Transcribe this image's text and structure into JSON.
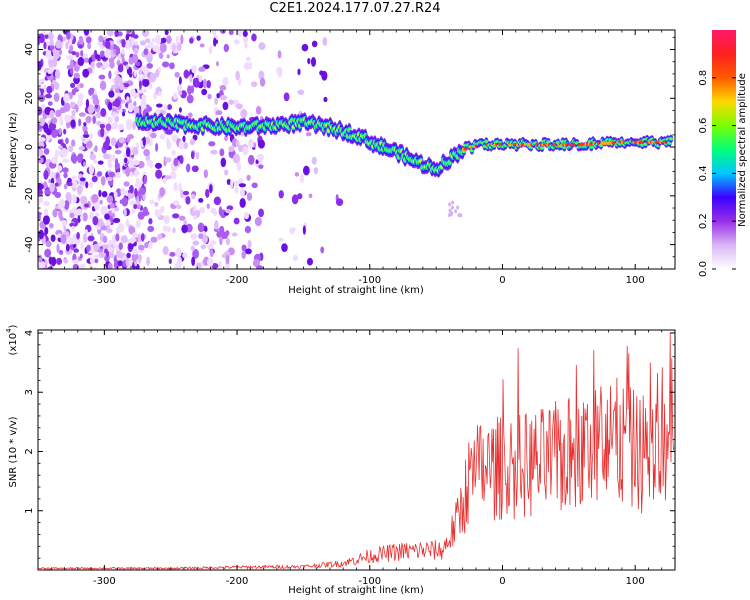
{
  "title": "C2E1.2024.177.07.27.R24",
  "chart_data": [
    {
      "type": "heatmap",
      "xlabel": "Height of straight line (km)",
      "ylabel": "Frequency (Hz)",
      "xlim": [
        -350,
        130
      ],
      "ylim": [
        -50,
        48
      ],
      "xticks": [
        -300,
        -200,
        -100,
        0,
        100
      ],
      "yticks": [
        -40,
        -20,
        0,
        20,
        40
      ],
      "xtick_labels": [
        "-300",
        "-200",
        "-100",
        "0",
        "100"
      ],
      "ytick_labels": [
        "-40",
        "-20",
        "0",
        "20",
        "40"
      ],
      "colorbar": {
        "label": "Normalized spectral amplitude",
        "range": [
          0,
          1
        ],
        "ticks": [
          0.0,
          0.2,
          0.4,
          0.6,
          0.8
        ],
        "tick_labels": [
          "0.0",
          "0.2",
          "0.4",
          "0.6",
          "0.8"
        ],
        "colors": [
          "#ffffff",
          "#d9b6f5",
          "#9a2ee8",
          "#3a00ff",
          "#00c8ff",
          "#00ff7a",
          "#7aff00",
          "#ffd800",
          "#ff5a00",
          "#ff2020",
          "#ff1a6a"
        ]
      },
      "ridge": {
        "description_points": [
          {
            "x": -300,
            "y": 10
          },
          {
            "x": -260,
            "y": 10
          },
          {
            "x": -230,
            "y": 9
          },
          {
            "x": -200,
            "y": 8
          },
          {
            "x": -170,
            "y": 9
          },
          {
            "x": -150,
            "y": 10
          },
          {
            "x": -130,
            "y": 8
          },
          {
            "x": -110,
            "y": 5
          },
          {
            "x": -95,
            "y": 1
          },
          {
            "x": -80,
            "y": -2
          },
          {
            "x": -65,
            "y": -6
          },
          {
            "x": -50,
            "y": -9
          },
          {
            "x": -40,
            "y": -5
          },
          {
            "x": -30,
            "y": -1
          },
          {
            "x": -15,
            "y": 1
          },
          {
            "x": 0,
            "y": 1
          },
          {
            "x": 30,
            "y": 1
          },
          {
            "x": 60,
            "y": 1
          },
          {
            "x": 90,
            "y": 2
          },
          {
            "x": 125,
            "y": 2
          }
        ]
      }
    },
    {
      "type": "line",
      "xlabel": "Height of straight line (km)",
      "ylabel": "SNR (10 * v/v)",
      "exponent_label": "(x10",
      "exponent_power": "4",
      "exponent_close": ")",
      "xlim": [
        -350,
        130
      ],
      "ylim": [
        0,
        4.05
      ],
      "xticks": [
        -300,
        -200,
        -100,
        0,
        100
      ],
      "yticks": [
        1,
        2,
        3,
        4
      ],
      "xtick_labels": [
        "-300",
        "-200",
        "-100",
        "0",
        "100"
      ],
      "ytick_labels": [
        "1",
        "2",
        "3",
        "4"
      ],
      "series": [
        {
          "color": "#e83030",
          "envelope": [
            {
              "x": -350,
              "y": 0.03
            },
            {
              "x": -250,
              "y": 0.03
            },
            {
              "x": -200,
              "y": 0.05
            },
            {
              "x": -150,
              "y": 0.06
            },
            {
              "x": -120,
              "y": 0.12
            },
            {
              "x": -100,
              "y": 0.25
            },
            {
              "x": -80,
              "y": 0.32
            },
            {
              "x": -60,
              "y": 0.35
            },
            {
              "x": -45,
              "y": 0.35
            },
            {
              "x": -35,
              "y": 0.8
            },
            {
              "x": -25,
              "y": 1.6
            },
            {
              "x": -15,
              "y": 1.8
            },
            {
              "x": 0,
              "y": 1.8
            },
            {
              "x": 30,
              "y": 1.9
            },
            {
              "x": 60,
              "y": 2.1
            },
            {
              "x": 80,
              "y": 2.3
            },
            {
              "x": 100,
              "y": 2.1
            },
            {
              "x": 130,
              "y": 2.0
            }
          ]
        }
      ]
    }
  ]
}
